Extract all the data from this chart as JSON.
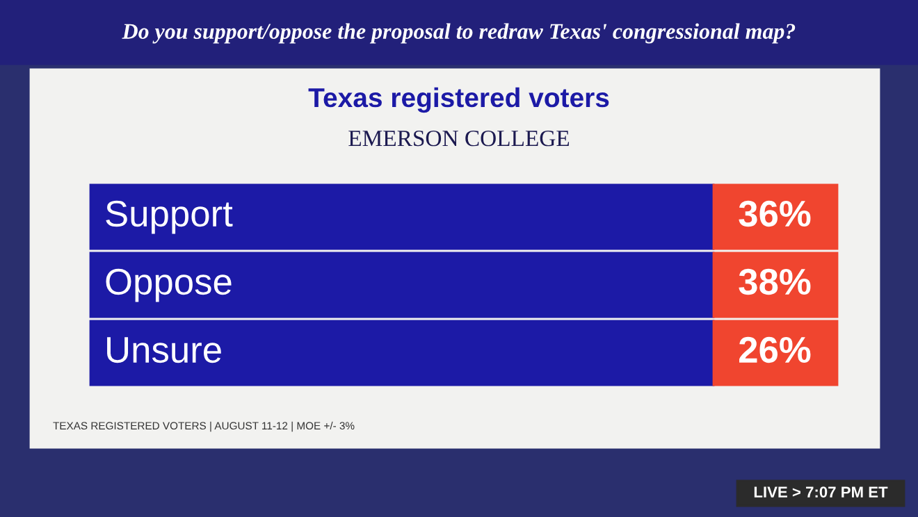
{
  "chart_data": {
    "type": "other",
    "title": "Do you support/oppose the proposal to redraw Texas' congressional map?",
    "subtitle": "Texas registered voters",
    "categories": [
      "Support",
      "Oppose",
      "Unsure"
    ],
    "values": [
      36,
      38,
      26
    ],
    "value_labels": [
      "36%",
      "38%",
      "26%"
    ],
    "color": "#f0452f",
    "annotations": [
      "EMERSON COLLEGE",
      "TEXAS REGISTERED VOTERS | AUGUST 11-12 | MOE +/- 3%",
      "LIVE > 7:07 PM ET"
    ]
  }
}
